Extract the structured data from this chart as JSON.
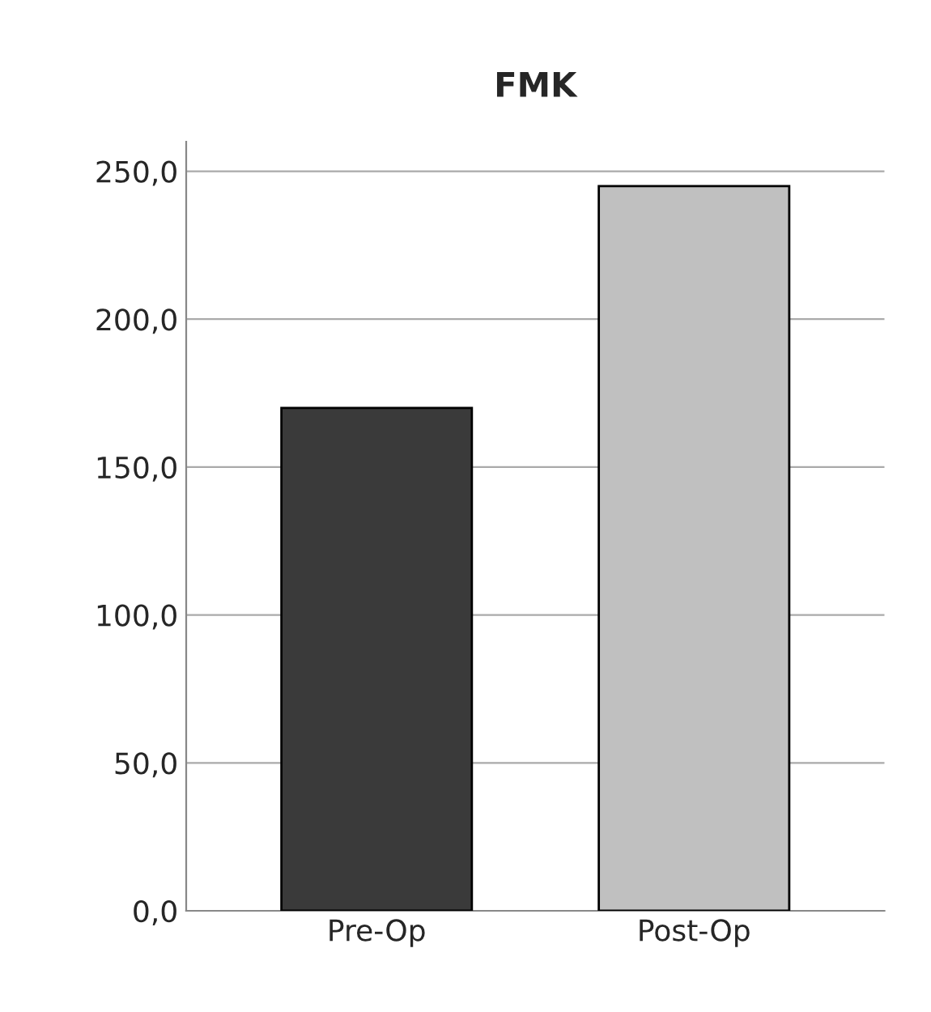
{
  "chart_data": {
    "type": "bar",
    "title": "FMK",
    "categories": [
      "Pre-Op",
      "Post-Op"
    ],
    "values": [
      170,
      245
    ],
    "colors": [
      "#3a3a3a",
      "#c0c0c0"
    ],
    "ylim": [
      0,
      260
    ],
    "yticks": [
      {
        "value": 0,
        "label": "0,0"
      },
      {
        "value": 50,
        "label": "50,0"
      },
      {
        "value": 100,
        "label": "100,0"
      },
      {
        "value": 150,
        "label": "150,0"
      },
      {
        "value": 200,
        "label": "200,0"
      },
      {
        "value": 250,
        "label": "250,0"
      }
    ],
    "grid": "y"
  }
}
